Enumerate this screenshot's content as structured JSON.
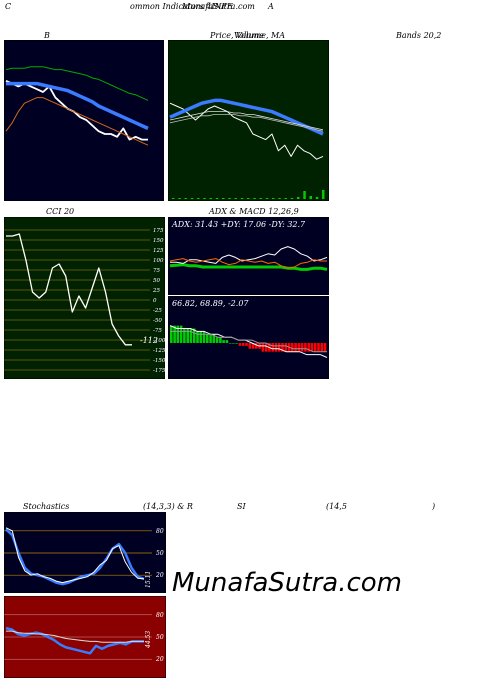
{
  "header": {
    "left": "C",
    "center": "ommon Indicators 4INFE",
    "center_overlay": "MunafaSutra.com",
    "right": "A"
  },
  "titles": {
    "bands_left": "B",
    "price_center": "Price, Volume, MA",
    "price_overlay": "Volume",
    "bands_right": "Bands 20,2",
    "cci": "CCI 20",
    "adx_macd": "ADX  & MACD 12,26,9",
    "stoch_left": "Stochastics",
    "stoch_params": "(14,3,3) & R",
    "rsi_si": "SI",
    "rsi_params": "(14,5",
    "rsi_close": ")"
  },
  "watermark": "MunafaSutra.com",
  "colors": {
    "panel_dark": "#000022",
    "panel_green": "#002200",
    "panel_red": "#8b0000",
    "grid_olive": "#b8860b",
    "blue_line": "#3a7bff",
    "volume_green": "#00cc00",
    "macd_red": "#ff0000"
  },
  "chart_data": [
    {
      "id": "bollinger",
      "type": "line",
      "title": "Bollinger Bands 20,2",
      "ylim": [
        0,
        100
      ],
      "series": [
        {
          "color": "#ffffff",
          "values": [
            78,
            76,
            74,
            76,
            74,
            72,
            70,
            74,
            66,
            62,
            58,
            56,
            52,
            50,
            46,
            42,
            40,
            40,
            38,
            44,
            36,
            38,
            36,
            36
          ]
        },
        {
          "color": "#3a7bff",
          "values": [
            76,
            76,
            76,
            76,
            76,
            76,
            75,
            74,
            73,
            72,
            71,
            69,
            67,
            65,
            63,
            60,
            58,
            56,
            54,
            52,
            50,
            48,
            46,
            44
          ]
        },
        {
          "color": "#00aa00",
          "values": [
            86,
            87,
            87,
            87,
            88,
            88,
            88,
            87,
            86,
            86,
            85,
            84,
            83,
            82,
            80,
            79,
            77,
            75,
            73,
            71,
            69,
            68,
            66,
            64
          ]
        },
        {
          "color": "#d2691e",
          "values": [
            42,
            48,
            56,
            62,
            64,
            66,
            66,
            64,
            62,
            60,
            58,
            56,
            54,
            52,
            50,
            48,
            46,
            44,
            42,
            40,
            38,
            36,
            34,
            32
          ]
        }
      ]
    },
    {
      "id": "price_volume_ma",
      "type": "line",
      "title": "Price, Volume, MA",
      "ylim": [
        0,
        100
      ],
      "series": [
        {
          "color": "#ffffff",
          "values": [
            62,
            60,
            58,
            54,
            50,
            54,
            58,
            60,
            58,
            56,
            52,
            50,
            48,
            40,
            38,
            36,
            40,
            28,
            32,
            24,
            32,
            28,
            26,
            22,
            24
          ]
        },
        {
          "color": "#3a7bff",
          "values": [
            52,
            54,
            56,
            58,
            60,
            62,
            63,
            64,
            64,
            63,
            62,
            61,
            60,
            59,
            58,
            57,
            56,
            54,
            52,
            50,
            48,
            46,
            44,
            42,
            40
          ]
        },
        {
          "color": "#dddddd",
          "values": [
            50,
            51,
            52,
            53,
            54,
            55,
            56,
            56,
            56,
            56,
            55,
            55,
            54,
            54,
            53,
            52,
            51,
            50,
            49,
            48,
            47,
            46,
            45,
            44,
            43
          ]
        },
        {
          "color": "#bbbbbb",
          "values": [
            48,
            49,
            50,
            51,
            52,
            53,
            53,
            54,
            54,
            54,
            54,
            53,
            53,
            52,
            52,
            51,
            50,
            49,
            48,
            47,
            46,
            45,
            44,
            43,
            42
          ]
        }
      ],
      "volume": [
        1,
        1,
        1,
        1,
        1,
        1,
        1,
        1,
        1,
        1,
        1,
        1,
        1,
        1,
        1,
        1,
        1,
        1,
        1,
        1,
        2,
        8,
        3,
        2,
        9
      ]
    },
    {
      "id": "cci",
      "type": "line",
      "title": "CCI 20",
      "ylim": [
        -175,
        175
      ],
      "yticks": [
        "175",
        "150",
        "125",
        "100",
        "75",
        "50",
        "25",
        "0",
        "-25",
        "-50",
        "-75",
        "-100",
        "-125",
        "-150",
        "-175"
      ],
      "last_value_label": "-112",
      "series": [
        {
          "color": "#ffffff",
          "values": [
            160,
            160,
            165,
            100,
            20,
            5,
            20,
            80,
            90,
            60,
            -30,
            10,
            -20,
            30,
            80,
            20,
            -60,
            -90,
            -112,
            -112
          ]
        }
      ]
    },
    {
      "id": "adx",
      "type": "line",
      "title": "ADX",
      "readout": "ADX: 31.43  +DY: 17.06  -DY: 32.7",
      "ylim": [
        0,
        100
      ],
      "series": [
        {
          "color": "#00cc00",
          "values": [
            42,
            43,
            44,
            42,
            42,
            40,
            40,
            40,
            40,
            40,
            40,
            40,
            40,
            40,
            40,
            40,
            40,
            40,
            38,
            38,
            36,
            36,
            38,
            38,
            36
          ]
        },
        {
          "color": "#ffffff",
          "values": [
            48,
            48,
            46,
            52,
            52,
            50,
            48,
            46,
            56,
            60,
            56,
            50,
            52,
            54,
            58,
            62,
            60,
            70,
            74,
            70,
            62,
            58,
            50,
            52,
            56
          ]
        },
        {
          "color": "#ff6600",
          "values": [
            50,
            52,
            54,
            50,
            48,
            50,
            52,
            54,
            48,
            44,
            46,
            52,
            50,
            48,
            50,
            46,
            48,
            42,
            38,
            40,
            46,
            48,
            52,
            50,
            50
          ]
        }
      ]
    },
    {
      "id": "macd",
      "type": "bar",
      "title": "MACD 12,26,9",
      "readout": "66.82,  68.89,  -2.07",
      "ylim": [
        -10,
        10
      ],
      "histogram": [
        6,
        6,
        6,
        6,
        5,
        5,
        5,
        5,
        4,
        4,
        4,
        3,
        3,
        3,
        2,
        2,
        1,
        1,
        0,
        0,
        0,
        -1,
        -1,
        -1,
        -2,
        -2,
        -2,
        -2,
        -3,
        -3,
        -3,
        -3,
        -3,
        -3,
        -3,
        -3,
        -3,
        -3,
        -3,
        -3,
        -3,
        -3,
        -3,
        -3,
        -3,
        -3,
        -3,
        -3
      ],
      "series": [
        {
          "color": "#ffffff",
          "values": [
            6,
            5,
            5,
            5,
            4,
            4,
            3,
            3,
            2,
            2,
            1,
            1,
            0,
            -1,
            -1,
            -2,
            -2,
            -3,
            -3,
            -3,
            -4,
            -4,
            -4,
            -5
          ]
        },
        {
          "color": "#999999",
          "values": [
            4,
            4,
            4,
            4,
            3,
            3,
            3,
            2,
            2,
            2,
            1,
            1,
            1,
            0,
            0,
            -1,
            -1,
            -1,
            -2,
            -2,
            -2,
            -3,
            -3,
            -3
          ]
        }
      ]
    },
    {
      "id": "stochastics",
      "type": "line",
      "title": "Stochastics (14,3,3)",
      "ylim": [
        0,
        100
      ],
      "yticks": [
        "80",
        "50",
        "20"
      ],
      "last_value_label": "15.11",
      "series": [
        {
          "color": "#3a7bff",
          "values": [
            82,
            74,
            50,
            30,
            22,
            20,
            18,
            14,
            10,
            8,
            10,
            14,
            18,
            20,
            22,
            30,
            42,
            56,
            62,
            50,
            30,
            18,
            15
          ]
        },
        {
          "color": "#ffffff",
          "values": [
            84,
            80,
            44,
            26,
            20,
            22,
            18,
            16,
            12,
            10,
            12,
            14,
            16,
            18,
            24,
            34,
            40,
            56,
            60,
            38,
            24,
            16,
            15
          ]
        }
      ]
    },
    {
      "id": "rsi",
      "type": "line",
      "title": "RSI (14,5)",
      "ylim": [
        0,
        100
      ],
      "yticks": [
        "80",
        "50",
        "20"
      ],
      "last_value_label": "44.53",
      "series": [
        {
          "color": "#3a7bff",
          "values": [
            62,
            60,
            54,
            52,
            54,
            56,
            54,
            50,
            46,
            40,
            36,
            34,
            32,
            30,
            28,
            38,
            34,
            38,
            40,
            42,
            40,
            44,
            44,
            44
          ]
        },
        {
          "color": "#dddddd",
          "values": [
            58,
            58,
            56,
            55,
            55,
            54,
            54,
            53,
            52,
            50,
            48,
            47,
            46,
            45,
            44,
            44,
            43,
            43,
            43,
            43,
            43,
            44,
            44,
            44
          ]
        }
      ]
    }
  ]
}
